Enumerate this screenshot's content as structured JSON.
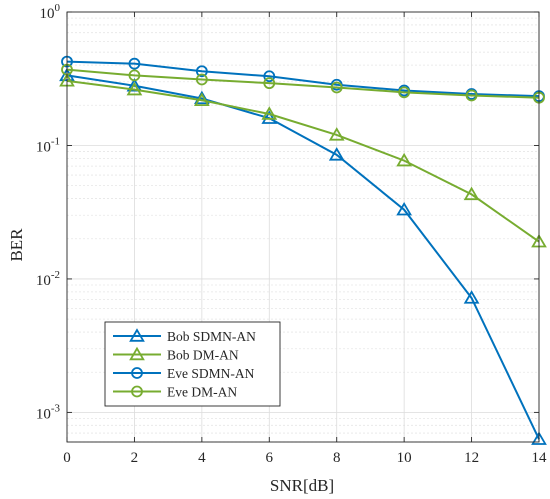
{
  "chart_data": {
    "type": "line",
    "title": "",
    "xlabel": "SNR[dB]",
    "ylabel": "BER",
    "x": [
      0,
      2,
      4,
      6,
      8,
      10,
      12,
      14
    ],
    "xlim": [
      0,
      14
    ],
    "xticks": [
      "0",
      "2",
      "4",
      "6",
      "8",
      "10",
      "12",
      "14"
    ],
    "ylim": [
      0.0006,
      1
    ],
    "yscale": "log",
    "yticks": [
      {
        "value": 0.001,
        "base": "10",
        "exp": "-3"
      },
      {
        "value": 0.01,
        "base": "10",
        "exp": "-2"
      },
      {
        "value": 0.1,
        "base": "10",
        "exp": "-1"
      },
      {
        "value": 1,
        "base": "10",
        "exp": "0"
      }
    ],
    "grid": true,
    "legend_position": "bottom-left",
    "series": [
      {
        "name": "Bob SDMN-AN",
        "marker": "triangle",
        "color": "#0072BD",
        "values": [
          0.335,
          0.28,
          0.225,
          0.16,
          0.085,
          0.033,
          0.0072,
          0.00063
        ]
      },
      {
        "name": "Bob DM-AN",
        "marker": "triangle",
        "color": "#77AC30",
        "values": [
          0.305,
          0.262,
          0.218,
          0.172,
          0.12,
          0.077,
          0.043,
          0.019
        ]
      },
      {
        "name": "Eve SDMN-AN",
        "marker": "circle",
        "color": "#0072BD",
        "values": [
          0.425,
          0.41,
          0.36,
          0.33,
          0.285,
          0.258,
          0.243,
          0.234
        ]
      },
      {
        "name": "Eve DM-AN",
        "marker": "circle",
        "color": "#77AC30",
        "values": [
          0.37,
          0.335,
          0.312,
          0.293,
          0.272,
          0.25,
          0.237,
          0.228
        ]
      }
    ]
  }
}
